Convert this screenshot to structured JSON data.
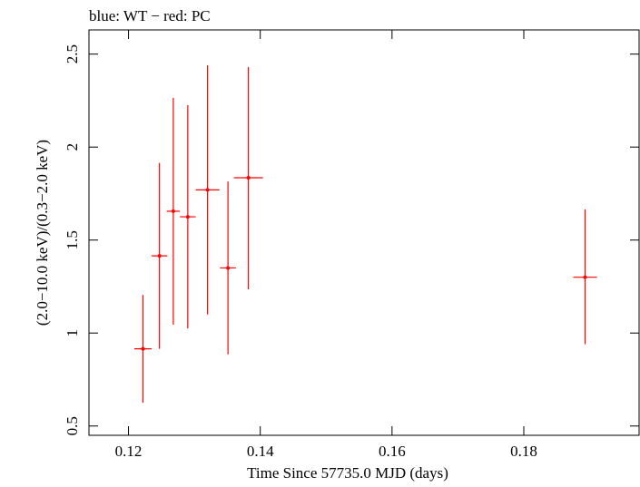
{
  "chart_data": {
    "type": "scatter",
    "title": "blue: WT − red: PC",
    "xlabel": "Time Since 57735.0 MJD (days)",
    "ylabel": "(2.0−10.0 keV)/(0.3−2.0 keV)",
    "xlim": [
      0.114,
      0.1975
    ],
    "ylim": [
      0.45,
      2.63
    ],
    "x_ticks": [
      0.12,
      0.14,
      0.16,
      0.18
    ],
    "x_tick_labels": [
      "0.12",
      "0.14",
      "0.16",
      "0.18"
    ],
    "y_ticks": [
      0.5,
      1,
      1.5,
      2,
      2.5
    ],
    "y_tick_labels": [
      "0.5",
      "1",
      "1.5",
      "2",
      "2.5"
    ],
    "grid": false,
    "series": [
      {
        "color": "#ff0000",
        "points": [
          {
            "x": 0.1222,
            "y": 0.915,
            "xerr": 0.0013,
            "ylo": 0.625,
            "yhi": 1.205
          },
          {
            "x": 0.1247,
            "y": 1.415,
            "xerr": 0.0012,
            "ylo": 0.915,
            "yhi": 1.915
          },
          {
            "x": 0.1268,
            "y": 1.655,
            "xerr": 0.001,
            "ylo": 1.045,
            "yhi": 2.265
          },
          {
            "x": 0.129,
            "y": 1.625,
            "xerr": 0.0012,
            "ylo": 1.025,
            "yhi": 2.225
          },
          {
            "x": 0.132,
            "y": 1.77,
            "xerr": 0.0018,
            "ylo": 1.1,
            "yhi": 2.44
          },
          {
            "x": 0.1351,
            "y": 1.35,
            "xerr": 0.0012,
            "ylo": 0.885,
            "yhi": 1.815
          },
          {
            "x": 0.1382,
            "y": 1.835,
            "xerr": 0.0022,
            "ylo": 1.235,
            "yhi": 2.43
          },
          {
            "x": 0.1893,
            "y": 1.3,
            "xerr": 0.0018,
            "ylo": 0.94,
            "yhi": 1.665
          }
        ]
      }
    ]
  }
}
